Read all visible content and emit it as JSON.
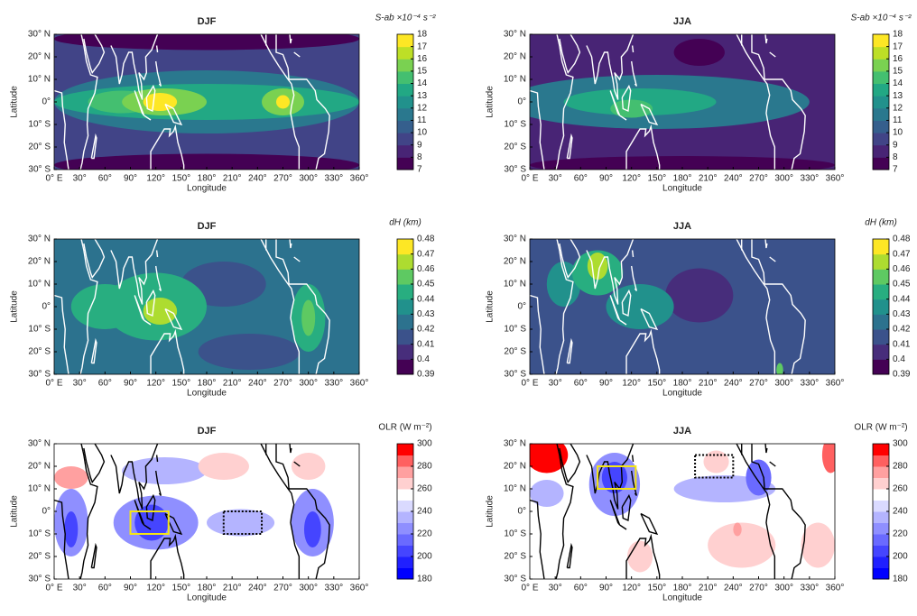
{
  "chart_data": [
    {
      "type": "heatmap",
      "title": "DJF",
      "xlabel": "Longitude",
      "ylabel": "Latitude",
      "xlim": [
        0,
        360
      ],
      "ylim": [
        -30,
        30
      ],
      "xticks": [
        {
          "value": 0,
          "label": "0° E"
        },
        {
          "value": 30,
          "label": "30°"
        },
        {
          "value": 60,
          "label": "60°"
        },
        {
          "value": 90,
          "label": "90°"
        },
        {
          "value": 120,
          "label": "120°"
        },
        {
          "value": 150,
          "label": "150°"
        },
        {
          "value": 180,
          "label": "180°"
        },
        {
          "value": 210,
          "label": "210°"
        },
        {
          "value": 240,
          "label": "240°"
        },
        {
          "value": 270,
          "label": "270°"
        },
        {
          "value": 300,
          "label": "300°"
        },
        {
          "value": 330,
          "label": "330°"
        },
        {
          "value": 360,
          "label": "360°"
        }
      ],
      "yticks": [
        {
          "value": 30,
          "label": "30° N"
        },
        {
          "value": 20,
          "label": "20° N"
        },
        {
          "value": 10,
          "label": "10° N"
        },
        {
          "value": 0,
          "label": "0°"
        },
        {
          "value": -10,
          "label": "10° S"
        },
        {
          "value": -20,
          "label": "20° S"
        },
        {
          "value": -30,
          "label": "30° S"
        }
      ],
      "colorbar_label": "S-ab ×10⁻⁴ s⁻²",
      "clim": [
        7,
        18
      ],
      "cticks": [
        7,
        8,
        9,
        10,
        11,
        12,
        13,
        14,
        15,
        16,
        17,
        18
      ],
      "colors": [
        "#440154",
        "#482475",
        "#414487",
        "#355f8d",
        "#2a788e",
        "#21918c",
        "#22a884",
        "#44bf70",
        "#7ad151",
        "#bddf26",
        "#fde725"
      ],
      "coast_color": "#ffffff"
    },
    {
      "type": "heatmap",
      "title": "JJA",
      "xlabel": "Longitude",
      "ylabel": "Latitude",
      "xlim": [
        0,
        360
      ],
      "ylim": [
        -30,
        30
      ],
      "xticks": [
        {
          "value": 0,
          "label": "0° E"
        },
        {
          "value": 30,
          "label": "30°"
        },
        {
          "value": 60,
          "label": "60°"
        },
        {
          "value": 90,
          "label": "90°"
        },
        {
          "value": 120,
          "label": "120°"
        },
        {
          "value": 150,
          "label": "150°"
        },
        {
          "value": 180,
          "label": "180°"
        },
        {
          "value": 210,
          "label": "210°"
        },
        {
          "value": 240,
          "label": "240°"
        },
        {
          "value": 270,
          "label": "270°"
        },
        {
          "value": 300,
          "label": "300°"
        },
        {
          "value": 330,
          "label": "330°"
        },
        {
          "value": 360,
          "label": "360°"
        }
      ],
      "yticks": [
        {
          "value": 30,
          "label": "30° N"
        },
        {
          "value": 20,
          "label": "20° N"
        },
        {
          "value": 10,
          "label": "10° N"
        },
        {
          "value": 0,
          "label": "0°"
        },
        {
          "value": -10,
          "label": "10° S"
        },
        {
          "value": -20,
          "label": "20° S"
        },
        {
          "value": -30,
          "label": "30° S"
        }
      ],
      "colorbar_label": "S-ab ×10⁻⁴ s⁻²",
      "clim": [
        7,
        18
      ],
      "cticks": [
        7,
        8,
        9,
        10,
        11,
        12,
        13,
        14,
        15,
        16,
        17,
        18
      ],
      "colors": [
        "#440154",
        "#482475",
        "#414487",
        "#355f8d",
        "#2a788e",
        "#21918c",
        "#22a884",
        "#44bf70",
        "#7ad151",
        "#bddf26",
        "#fde725"
      ],
      "coast_color": "#ffffff"
    },
    {
      "type": "heatmap",
      "title": "DJF",
      "xlabel": "Longitude",
      "ylabel": "Latitude",
      "xlim": [
        0,
        360
      ],
      "ylim": [
        -30,
        30
      ],
      "xticks": [
        {
          "value": 0,
          "label": "0° E"
        },
        {
          "value": 30,
          "label": "30°"
        },
        {
          "value": 60,
          "label": "60°"
        },
        {
          "value": 90,
          "label": "90°"
        },
        {
          "value": 120,
          "label": "120°"
        },
        {
          "value": 150,
          "label": "150°"
        },
        {
          "value": 180,
          "label": "180°"
        },
        {
          "value": 210,
          "label": "210°"
        },
        {
          "value": 240,
          "label": "240°"
        },
        {
          "value": 270,
          "label": "270°"
        },
        {
          "value": 300,
          "label": "300°"
        },
        {
          "value": 330,
          "label": "330°"
        },
        {
          "value": 360,
          "label": "360°"
        }
      ],
      "yticks": [
        {
          "value": 30,
          "label": "30° N"
        },
        {
          "value": 20,
          "label": "20° N"
        },
        {
          "value": 10,
          "label": "10° N"
        },
        {
          "value": 0,
          "label": "0°"
        },
        {
          "value": -10,
          "label": "10° S"
        },
        {
          "value": -20,
          "label": "20° S"
        },
        {
          "value": -30,
          "label": "30° S"
        }
      ],
      "colorbar_label": "dH (km)",
      "clim": [
        0.39,
        0.48
      ],
      "cticks": [
        0.39,
        0.4,
        0.41,
        0.42,
        0.43,
        0.44,
        0.45,
        0.46,
        0.47,
        0.48
      ],
      "colors": [
        "#440154",
        "#472d7b",
        "#3b528b",
        "#2c728e",
        "#21918c",
        "#28ae80",
        "#5ec962",
        "#addc30",
        "#fde725"
      ],
      "coast_color": "#ffffff"
    },
    {
      "type": "heatmap",
      "title": "JJA",
      "xlabel": "Longitude",
      "ylabel": "Latitude",
      "xlim": [
        0,
        360
      ],
      "ylim": [
        -30,
        30
      ],
      "xticks": [
        {
          "value": 0,
          "label": "0° E"
        },
        {
          "value": 30,
          "label": "30°"
        },
        {
          "value": 60,
          "label": "60°"
        },
        {
          "value": 90,
          "label": "90°"
        },
        {
          "value": 120,
          "label": "120°"
        },
        {
          "value": 150,
          "label": "150°"
        },
        {
          "value": 180,
          "label": "180°"
        },
        {
          "value": 210,
          "label": "210°"
        },
        {
          "value": 240,
          "label": "240°"
        },
        {
          "value": 270,
          "label": "270°"
        },
        {
          "value": 300,
          "label": "300°"
        },
        {
          "value": 330,
          "label": "330°"
        },
        {
          "value": 360,
          "label": "360°"
        }
      ],
      "yticks": [
        {
          "value": 30,
          "label": "30° N"
        },
        {
          "value": 20,
          "label": "20° N"
        },
        {
          "value": 10,
          "label": "10° N"
        },
        {
          "value": 0,
          "label": "0°"
        },
        {
          "value": -10,
          "label": "10° S"
        },
        {
          "value": -20,
          "label": "20° S"
        },
        {
          "value": -30,
          "label": "30° S"
        }
      ],
      "colorbar_label": "dH (km)",
      "clim": [
        0.39,
        0.48
      ],
      "cticks": [
        0.39,
        0.4,
        0.41,
        0.42,
        0.43,
        0.44,
        0.45,
        0.46,
        0.47,
        0.48
      ],
      "colors": [
        "#440154",
        "#472d7b",
        "#3b528b",
        "#2c728e",
        "#21918c",
        "#28ae80",
        "#5ec962",
        "#addc30",
        "#fde725"
      ],
      "coast_color": "#ffffff"
    },
    {
      "type": "heatmap",
      "title": "DJF",
      "xlabel": "Longitude",
      "ylabel": "Latitude",
      "xlim": [
        0,
        360
      ],
      "ylim": [
        -30,
        30
      ],
      "xticks": [
        {
          "value": 0,
          "label": "0° E"
        },
        {
          "value": 30,
          "label": "30°"
        },
        {
          "value": 60,
          "label": "60°"
        },
        {
          "value": 90,
          "label": "90°"
        },
        {
          "value": 120,
          "label": "120°"
        },
        {
          "value": 150,
          "label": "150°"
        },
        {
          "value": 180,
          "label": "180°"
        },
        {
          "value": 210,
          "label": "210°"
        },
        {
          "value": 240,
          "label": "240°"
        },
        {
          "value": 270,
          "label": "270°"
        },
        {
          "value": 300,
          "label": "300°"
        },
        {
          "value": 330,
          "label": "330°"
        },
        {
          "value": 360,
          "label": "360°"
        }
      ],
      "yticks": [
        {
          "value": 30,
          "label": "30° N"
        },
        {
          "value": 20,
          "label": "20° N"
        },
        {
          "value": 10,
          "label": "10° N"
        },
        {
          "value": 0,
          "label": "0°"
        },
        {
          "value": -10,
          "label": "10° S"
        },
        {
          "value": -20,
          "label": "20° S"
        },
        {
          "value": -30,
          "label": "30° S"
        }
      ],
      "colorbar_label": "OLR (W m⁻²)",
      "clim": [
        180,
        300
      ],
      "cticks": [
        180,
        200,
        220,
        240,
        260,
        280,
        300
      ],
      "colors": [
        "#0000ff",
        "#2020ff",
        "#4545ff",
        "#6a6aff",
        "#8f8fff",
        "#b4b4ff",
        "#dadaff",
        "#ffffff",
        "#ffd0d0",
        "#ffa0a0",
        "#ff6060",
        "#ff0000"
      ],
      "coast_color": "#000000",
      "boxes": [
        {
          "lon": [
            90,
            135
          ],
          "lat": [
            -10,
            0
          ],
          "color": "#f5e614",
          "style": "solid"
        },
        {
          "lon": [
            200,
            245
          ],
          "lat": [
            -10,
            0
          ],
          "color": "#000000",
          "style": "dotted"
        }
      ]
    },
    {
      "type": "heatmap",
      "title": "JJA",
      "xlabel": "Longitude",
      "ylabel": "Latitude",
      "xlim": [
        0,
        360
      ],
      "ylim": [
        -30,
        30
      ],
      "xticks": [
        {
          "value": 0,
          "label": "0° E"
        },
        {
          "value": 30,
          "label": "30°"
        },
        {
          "value": 60,
          "label": "60°"
        },
        {
          "value": 90,
          "label": "90°"
        },
        {
          "value": 120,
          "label": "120°"
        },
        {
          "value": 150,
          "label": "150°"
        },
        {
          "value": 180,
          "label": "180°"
        },
        {
          "value": 210,
          "label": "210°"
        },
        {
          "value": 240,
          "label": "240°"
        },
        {
          "value": 270,
          "label": "270°"
        },
        {
          "value": 300,
          "label": "300°"
        },
        {
          "value": 330,
          "label": "330°"
        },
        {
          "value": 360,
          "label": "360°"
        }
      ],
      "yticks": [
        {
          "value": 30,
          "label": "30° N"
        },
        {
          "value": 20,
          "label": "20° N"
        },
        {
          "value": 10,
          "label": "10° N"
        },
        {
          "value": 0,
          "label": "0°"
        },
        {
          "value": -10,
          "label": "10° S"
        },
        {
          "value": -20,
          "label": "20° S"
        },
        {
          "value": -30,
          "label": "30° S"
        }
      ],
      "colorbar_label": "OLR (W m⁻²)",
      "clim": [
        180,
        300
      ],
      "cticks": [
        180,
        200,
        220,
        240,
        260,
        280,
        300
      ],
      "colors": [
        "#0000ff",
        "#2020ff",
        "#4545ff",
        "#6a6aff",
        "#8f8fff",
        "#b4b4ff",
        "#dadaff",
        "#ffffff",
        "#ffd0d0",
        "#ffa0a0",
        "#ff6060",
        "#ff0000"
      ],
      "coast_color": "#000000",
      "boxes": [
        {
          "lon": [
            80,
            125
          ],
          "lat": [
            10,
            20
          ],
          "color": "#f5e614",
          "style": "solid"
        },
        {
          "lon": [
            195,
            240
          ],
          "lat": [
            15,
            25
          ],
          "color": "#000000",
          "style": "dotted"
        }
      ]
    }
  ]
}
